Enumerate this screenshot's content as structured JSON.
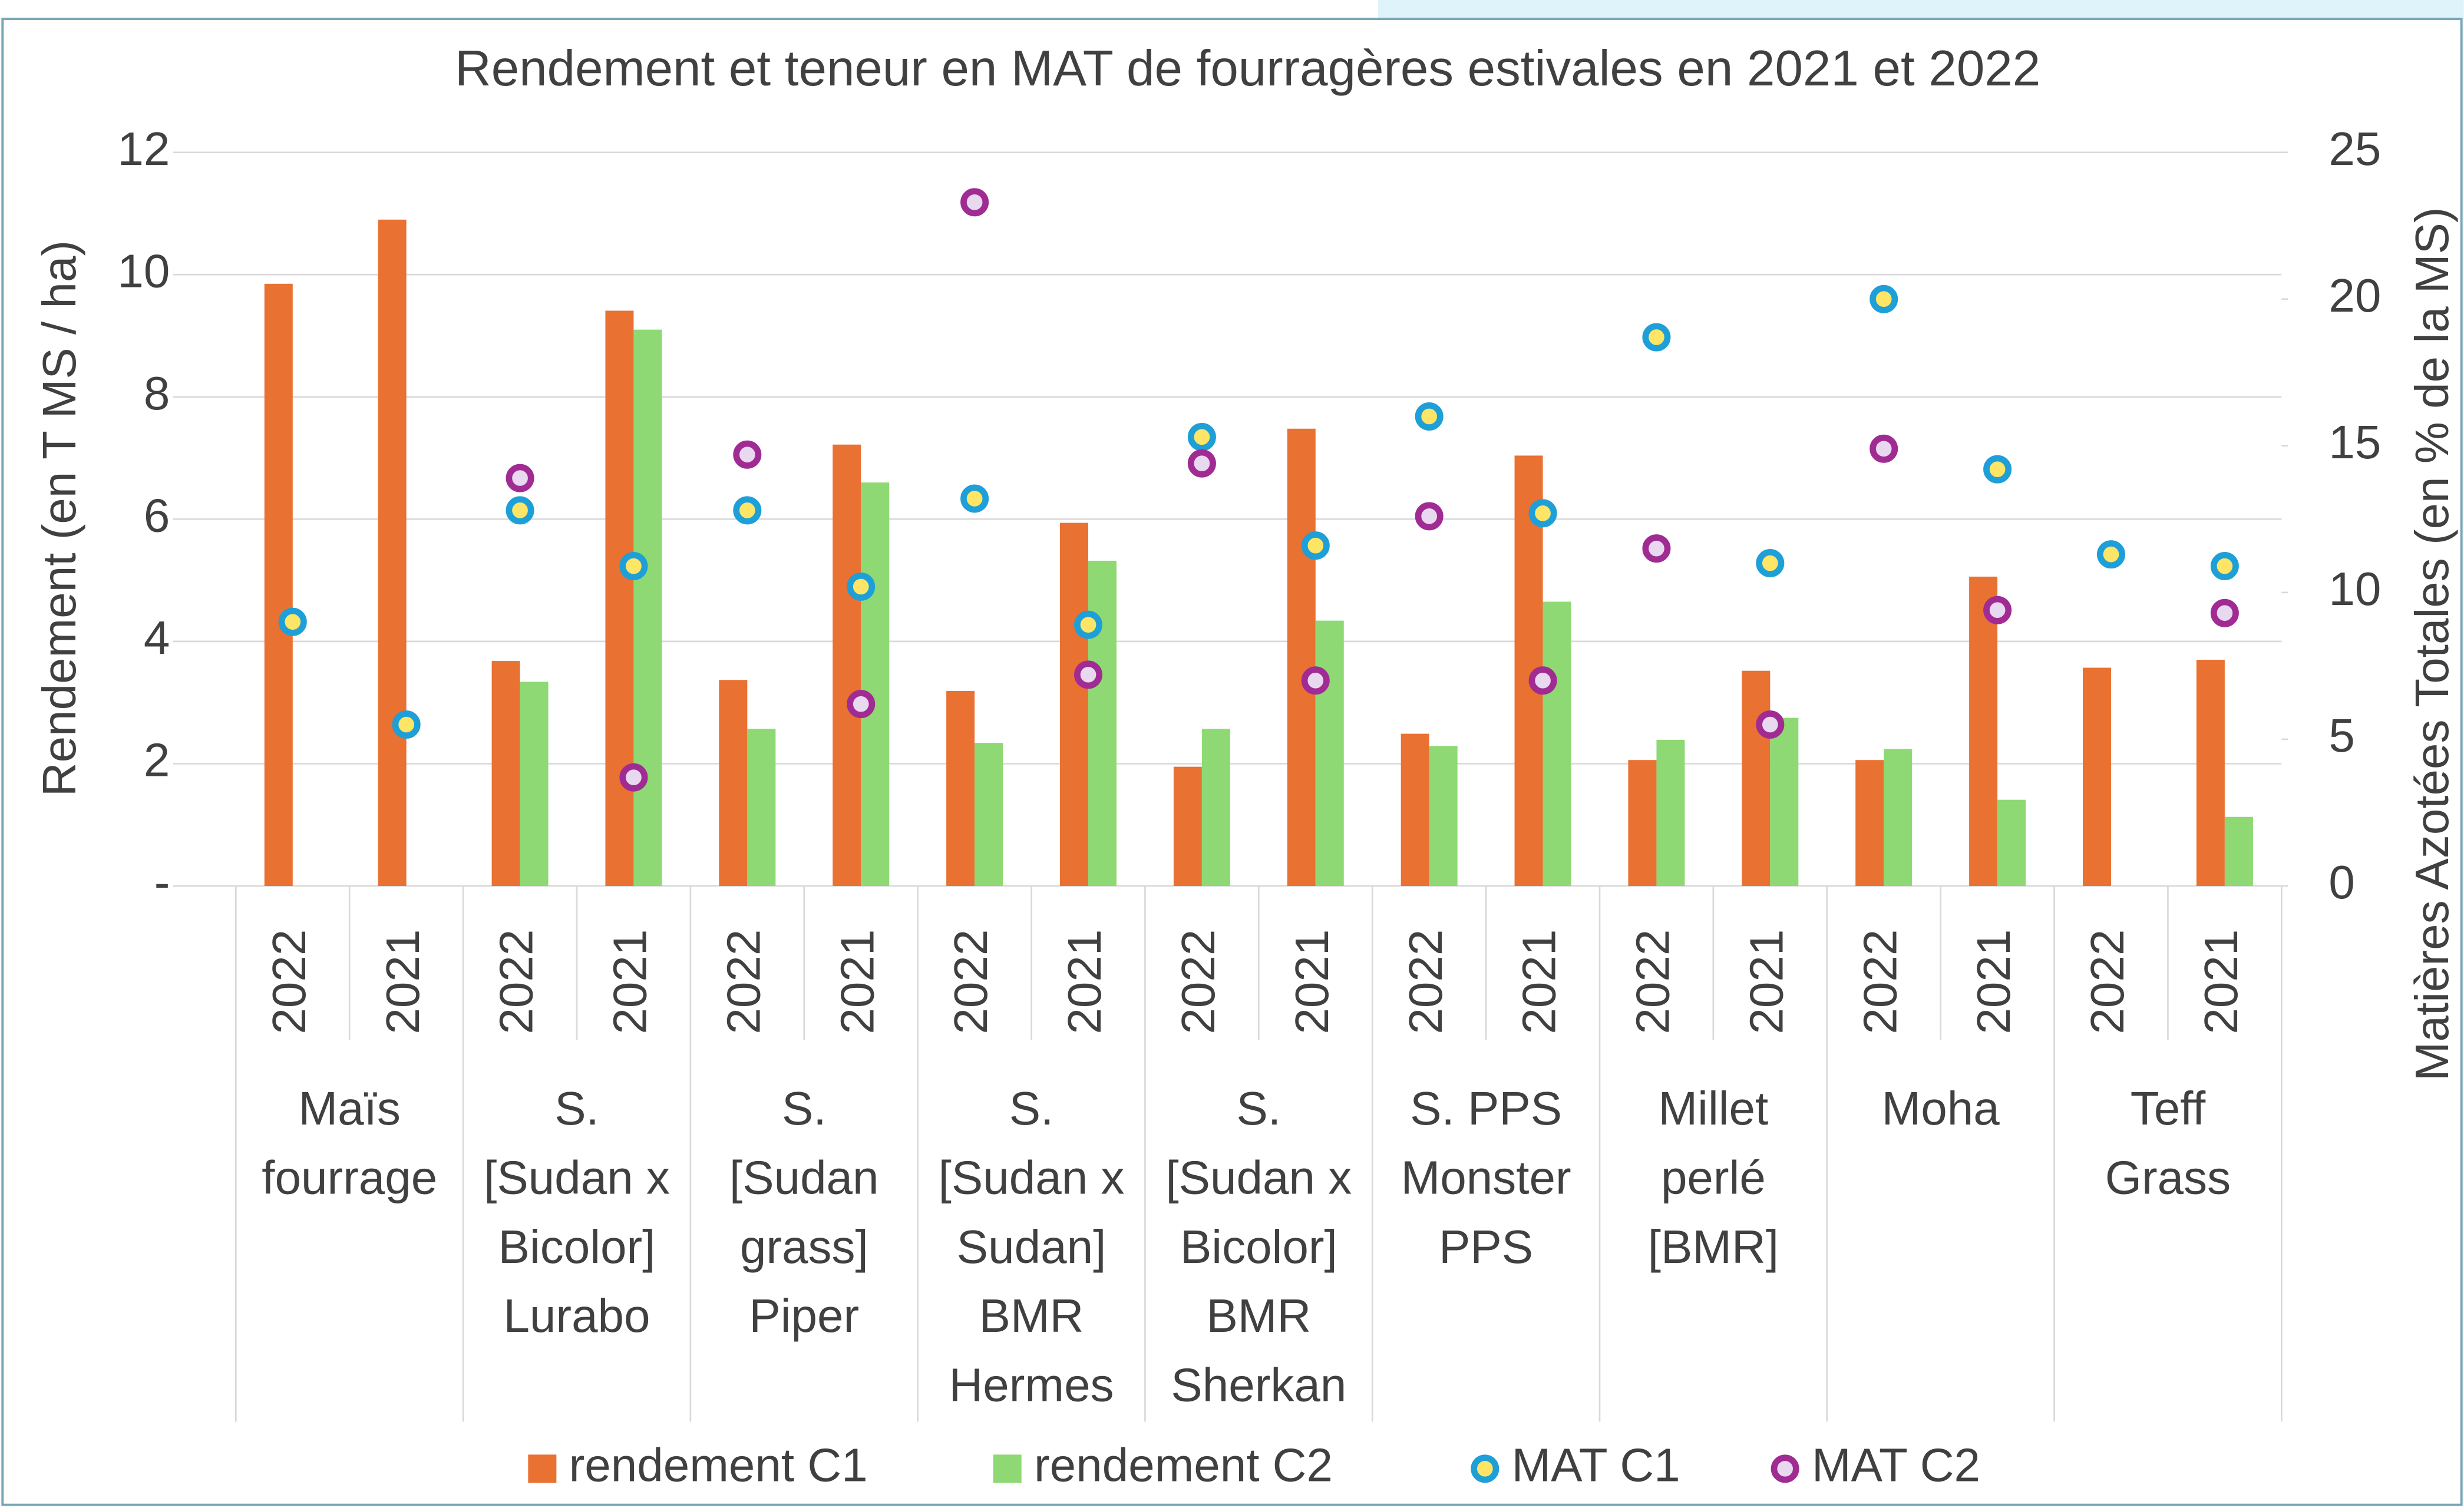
{
  "chart_data": {
    "type": "bar",
    "title": "Rendement et teneur en MAT de fourragères estivales en 2021 et 2022",
    "y_label": "Rendement (en T MS / ha)",
    "y2_label": "Matières Azotées Totales (en % de la MS)",
    "categories": [
      "2022",
      "2021",
      "2022",
      "2021",
      "2022",
      "2021",
      "2022",
      "2021",
      "2022",
      "2021",
      "2022",
      "2021",
      "2022",
      "2021",
      "2022",
      "2021",
      "2022",
      "2021"
    ],
    "groups": [
      [
        "Maïs",
        "fourrage"
      ],
      [
        "S.",
        "[Sudan x",
        "Bicolor]",
        "Lurabo"
      ],
      [
        "S.",
        "[Sudan",
        "grass]",
        "Piper"
      ],
      [
        "S.",
        "[Sudan x",
        "Sudan]",
        "BMR",
        "Hermes"
      ],
      [
        "S.",
        "[Sudan x",
        "Bicolor]",
        "BMR",
        "Sherkan"
      ],
      [
        "S. PPS",
        "Monster",
        "PPS"
      ],
      [
        "Millet",
        "perlé",
        "[BMR]"
      ],
      [
        "Moha"
      ],
      [
        "Teff",
        "Grass"
      ]
    ],
    "series": [
      {
        "name": "rendement C1",
        "color": "#e97132",
        "kind": "bar",
        "values": [
          9.85,
          10.9,
          3.68,
          9.41,
          3.37,
          7.22,
          3.19,
          5.94,
          1.95,
          7.48,
          2.49,
          7.04,
          2.06,
          3.52,
          2.06,
          5.06,
          3.57,
          3.7
        ]
      },
      {
        "name": "rendement C2",
        "color": "#8ed973",
        "kind": "bar",
        "values": [
          null,
          null,
          3.34,
          9.1,
          2.57,
          6.6,
          2.34,
          5.32,
          2.57,
          4.34,
          2.29,
          4.65,
          2.39,
          2.75,
          2.24,
          1.41,
          null,
          1.13
        ]
      },
      {
        "name": "MAT C1",
        "color": "#1e9fd8",
        "kind": "marker",
        "axis": "y2",
        "values": [
          9.0,
          5.5,
          12.8,
          10.9,
          12.8,
          10.2,
          13.2,
          8.9,
          15.3,
          11.6,
          16.0,
          12.7,
          18.7,
          11.0,
          20.0,
          14.2,
          11.3,
          10.9
        ]
      },
      {
        "name": "MAT C2",
        "color": "#a02b93",
        "kind": "marker",
        "axis": "y2",
        "values": [
          null,
          null,
          13.9,
          3.7,
          14.7,
          6.2,
          23.3,
          7.2,
          14.4,
          7.0,
          12.6,
          7.0,
          11.5,
          5.5,
          14.9,
          9.4,
          null,
          9.3
        ]
      }
    ],
    "ylim": [
      0,
      12
    ],
    "yticks": [
      {
        "value": 0,
        "label": "-"
      },
      2,
      4,
      6,
      8,
      10,
      12
    ],
    "y2lim": [
      0,
      25
    ],
    "y2ticks": [
      0,
      5,
      10,
      15,
      20,
      25
    ],
    "grid": true,
    "legend": "bottom"
  }
}
